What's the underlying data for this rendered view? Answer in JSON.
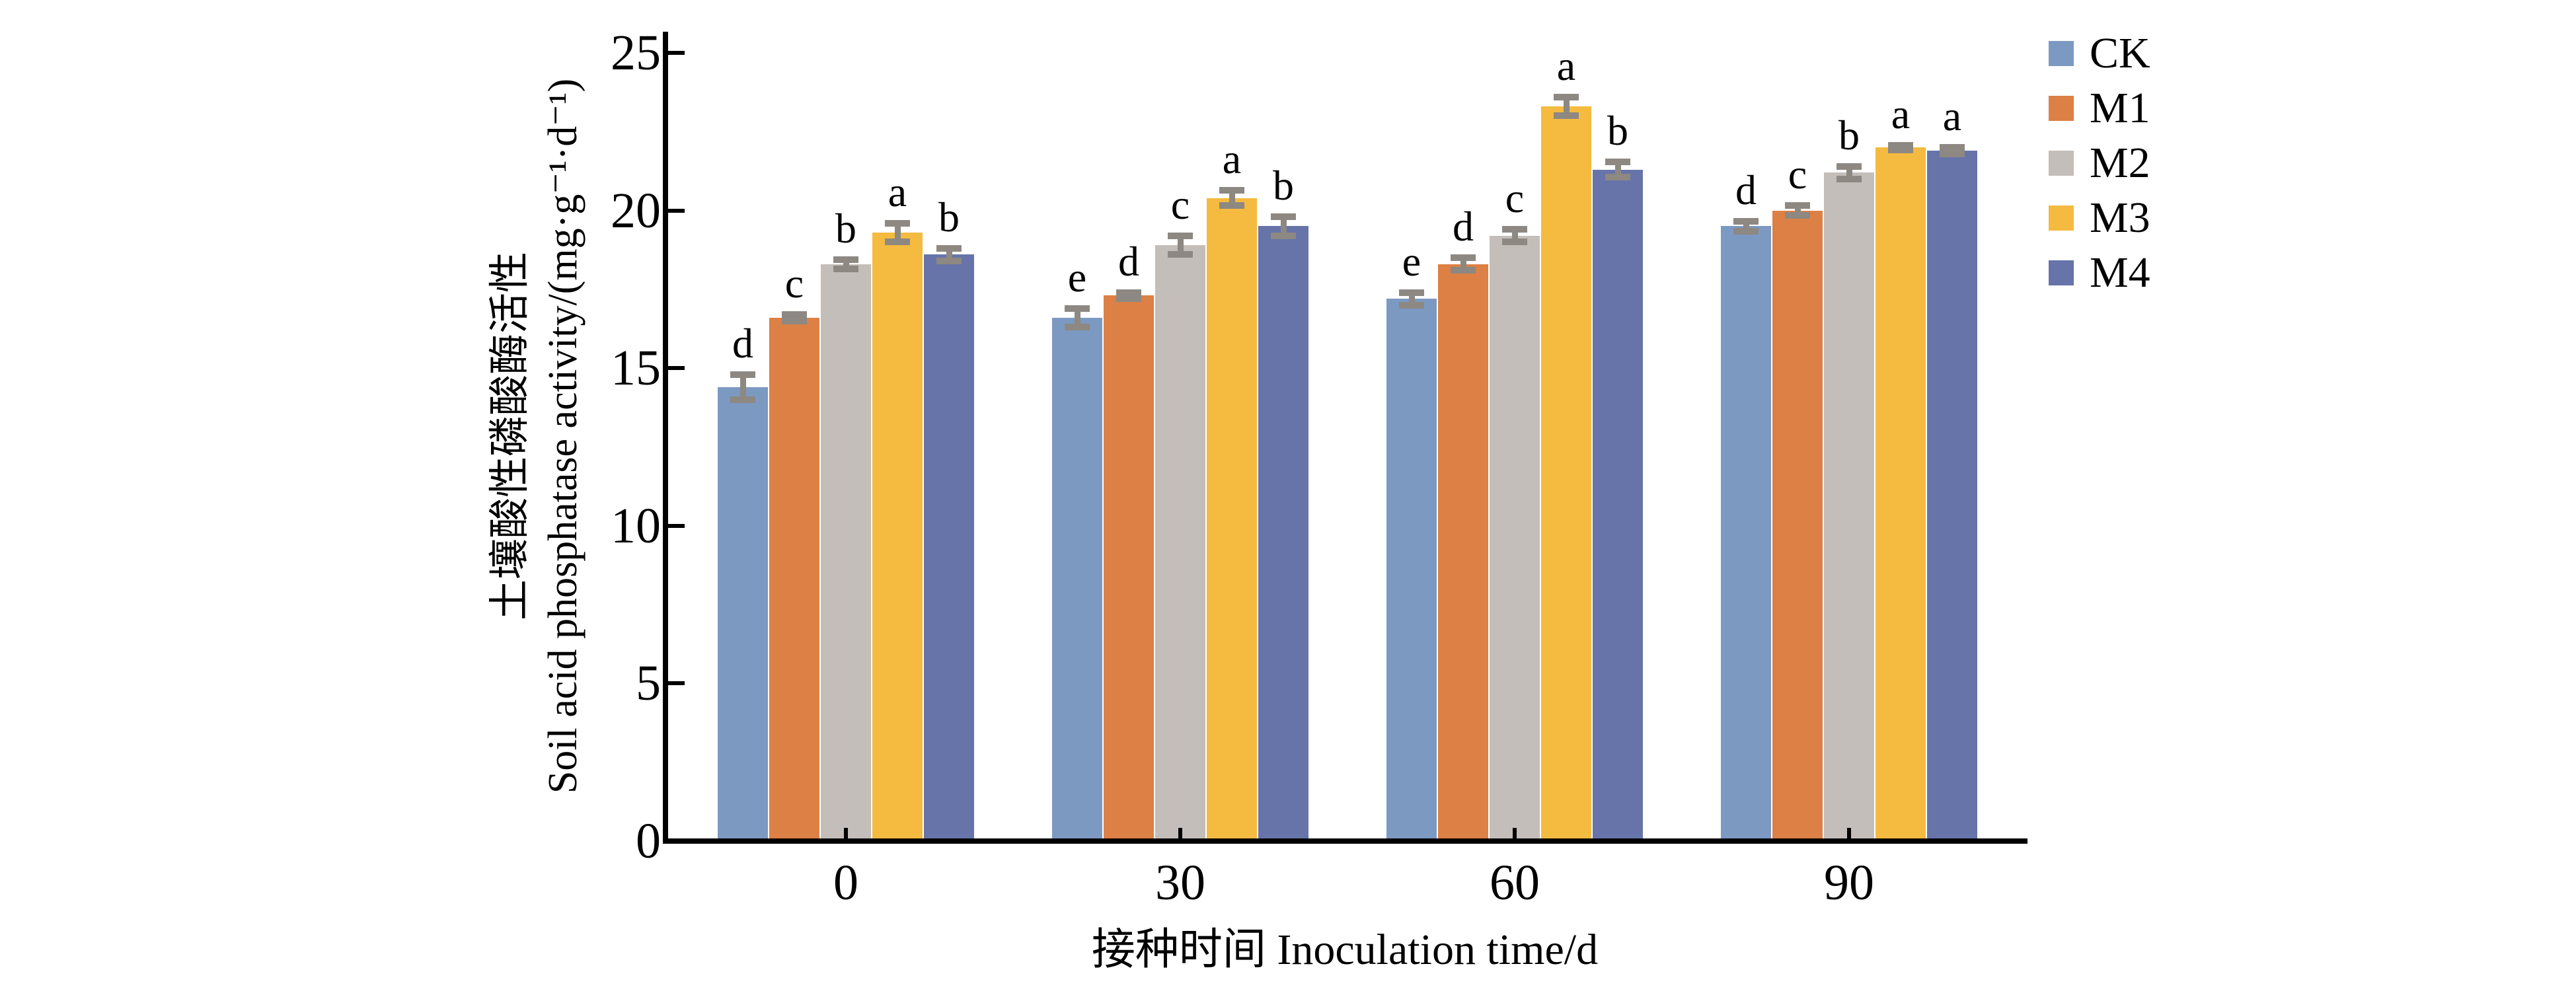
{
  "chart_data": {
    "type": "bar",
    "title": "",
    "xlabel": "接种时间 Inoculation time/d",
    "ylabel": [
      "土壤酸性磷酸酶活性",
      "Soil acid phosphatase activity/(mg·g⁻¹·d⁻¹)"
    ],
    "categories": [
      "0",
      "30",
      "60",
      "90"
    ],
    "ylim": [
      0,
      25
    ],
    "yticks": [
      0,
      5,
      10,
      15,
      20,
      25
    ],
    "grid": false,
    "legend_position": "top-right",
    "axis_color": "#000000",
    "error_bar_color": "#8D8882",
    "series": [
      {
        "name": "CK",
        "color": "#7C99C2",
        "values": [
          14.4,
          16.6,
          17.2,
          19.5
        ],
        "errors": [
          0.4,
          0.3,
          0.2,
          0.15
        ],
        "letters": [
          "d",
          "e",
          "e",
          "d"
        ]
      },
      {
        "name": "M1",
        "color": "#DC8045",
        "values": [
          16.6,
          17.3,
          18.3,
          20.0
        ],
        "errors": [
          0.1,
          0.1,
          0.2,
          0.15
        ],
        "letters": [
          "c",
          "d",
          "d",
          "c"
        ]
      },
      {
        "name": "M2",
        "color": "#C4BEBA",
        "values": [
          18.3,
          18.9,
          19.2,
          21.2
        ],
        "errors": [
          0.15,
          0.3,
          0.2,
          0.2
        ],
        "letters": [
          "b",
          "c",
          "c",
          "b"
        ]
      },
      {
        "name": "M3",
        "color": "#F5BA40",
        "values": [
          19.3,
          20.4,
          23.3,
          22.0
        ],
        "errors": [
          0.3,
          0.25,
          0.3,
          0.07
        ],
        "letters": [
          "a",
          "a",
          "a",
          "a"
        ]
      },
      {
        "name": "M4",
        "color": "#6674A9",
        "values": [
          18.6,
          19.5,
          21.3,
          21.9
        ],
        "errors": [
          0.2,
          0.3,
          0.25,
          0.1
        ],
        "letters": [
          "b",
          "b",
          "b",
          "a"
        ]
      }
    ]
  }
}
